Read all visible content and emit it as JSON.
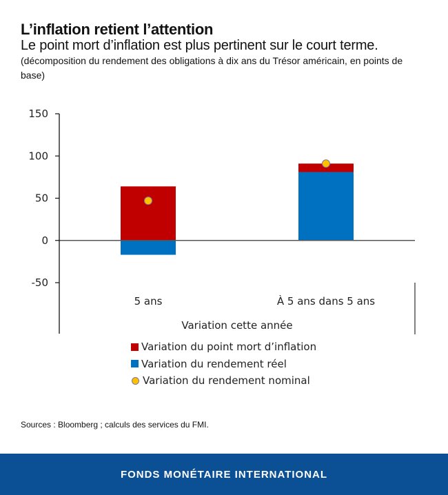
{
  "header": {
    "title": "L’inflation retient l’attention",
    "subtitle": "Le point mort d’inflation est plus pertinent sur le court terme.",
    "note": "(décomposition du rendement des obligations à dix ans du Trésor américain, en points de base)"
  },
  "chart_data": {
    "type": "bar",
    "stacked": true,
    "title": "L’inflation retient l’attention",
    "xlabel": "Variation cette année",
    "ylabel": "",
    "categories": [
      "5 ans",
      "À 5 ans dans 5 ans"
    ],
    "ylim": [
      -50,
      150
    ],
    "yticks": [
      150,
      100,
      50,
      0,
      -50
    ],
    "series": [
      {
        "name": "Variation du point mort d’inflation",
        "type": "bar",
        "color": "#c00000",
        "values": [
          64,
          10
        ]
      },
      {
        "name": "Variation du rendement réel",
        "type": "bar",
        "color": "#0070c0",
        "values": [
          -17,
          81
        ]
      },
      {
        "name": "Variation du rendement nominal",
        "type": "marker",
        "color": "#ffc000",
        "values": [
          47,
          91
        ]
      }
    ],
    "legend_position": "bottom"
  },
  "legend": [
    {
      "label": "Variation du point mort d’inflation",
      "color": "#c00000",
      "shape": "square"
    },
    {
      "label": "Variation du rendement réel",
      "color": "#0070c0",
      "shape": "square"
    },
    {
      "label": "Variation du rendement nominal",
      "color": "#ffc000",
      "shape": "circle"
    }
  ],
  "source": "Sources : Bloomberg ; calculs des services du FMI.",
  "footer": {
    "label": "FONDS MONÉTAIRE INTERNATIONAL",
    "color": "#0b4f94"
  }
}
